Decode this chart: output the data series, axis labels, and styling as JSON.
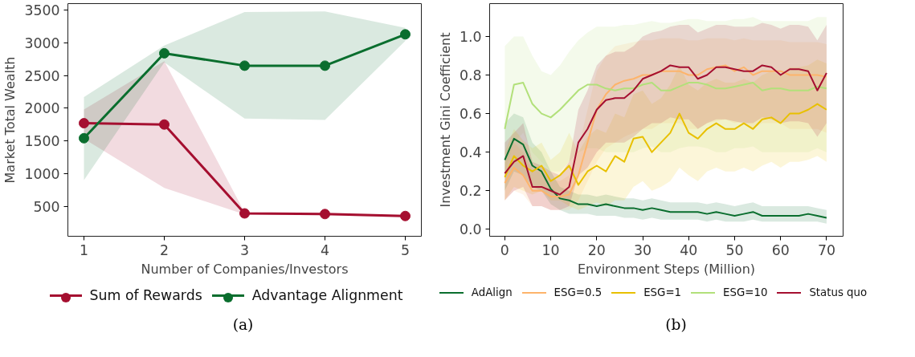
{
  "chart_data": [
    {
      "type": "line",
      "xlabel": "Number of Companies/Investors",
      "ylabel": "Market Total Wealth",
      "x": [
        1,
        2,
        3,
        4,
        5
      ],
      "xlim": [
        0.8,
        5.2
      ],
      "xticks": [
        1,
        2,
        3,
        4,
        5
      ],
      "ylim": [
        40,
        3600
      ],
      "yticks": [
        500,
        1000,
        1500,
        2000,
        2500,
        3000,
        3500
      ],
      "marker": "circle",
      "grid": false,
      "legend": "bottom",
      "annotations": [
        "(a)"
      ],
      "series": [
        {
          "name": "Sum of Rewards",
          "color": "#a50f30",
          "values": [
            1770,
            1750,
            390,
            380,
            350
          ],
          "lower": [
            1530,
            780,
            375,
            360,
            330
          ],
          "upper": [
            1980,
            2720,
            405,
            390,
            360
          ]
        },
        {
          "name": "Advantage Alignment",
          "color": "#0a6e2e",
          "values": [
            1540,
            2840,
            2650,
            2650,
            3130
          ],
          "lower": [
            900,
            2700,
            1840,
            1820,
            3030
          ],
          "upper": [
            2170,
            2960,
            3470,
            3480,
            3230
          ]
        }
      ]
    },
    {
      "type": "line",
      "xlabel": "Environment Steps (Million)",
      "ylabel": "Investment Gini Coefficient",
      "x": [
        0,
        2,
        4,
        6,
        8,
        10,
        12,
        14,
        16,
        18,
        20,
        22,
        24,
        26,
        28,
        30,
        32,
        34,
        36,
        38,
        40,
        42,
        44,
        46,
        48,
        50,
        52,
        54,
        56,
        58,
        60,
        62,
        64,
        66,
        68,
        70
      ],
      "xlim": [
        -3.3,
        73.6
      ],
      "xticks": [
        0,
        10,
        20,
        30,
        40,
        50,
        60,
        70
      ],
      "ylim": [
        -0.036,
        1.17
      ],
      "yticks": [
        {
          "value": 0,
          "label": "0.0"
        },
        {
          "value": 0.2,
          "label": "0.2"
        },
        {
          "value": 0.4,
          "label": "0.4"
        },
        {
          "value": 0.6,
          "label": "0.6"
        },
        {
          "value": 0.8,
          "label": "0.8"
        },
        {
          "value": 1,
          "label": "1.0"
        }
      ],
      "marker": "none",
      "grid": false,
      "legend": "bottom",
      "annotations": [
        "(b)"
      ],
      "series": [
        {
          "name": "AdAlign",
          "color": "#0a6e2e",
          "values": [
            0.36,
            0.47,
            0.44,
            0.33,
            0.3,
            0.21,
            0.16,
            0.15,
            0.13,
            0.13,
            0.12,
            0.13,
            0.12,
            0.11,
            0.11,
            0.1,
            0.11,
            0.1,
            0.09,
            0.09,
            0.09,
            0.09,
            0.08,
            0.09,
            0.08,
            0.07,
            0.08,
            0.09,
            0.07,
            0.07,
            0.07,
            0.07,
            0.07,
            0.08,
            0.07,
            0.06
          ],
          "lower": [
            0.2,
            0.3,
            0.28,
            0.22,
            0.2,
            0.13,
            0.1,
            0.08,
            0.08,
            0.08,
            0.07,
            0.07,
            0.07,
            0.06,
            0.06,
            0.05,
            0.06,
            0.05,
            0.05,
            0.05,
            0.05,
            0.05,
            0.04,
            0.05,
            0.04,
            0.04,
            0.04,
            0.05,
            0.04,
            0.04,
            0.04,
            0.04,
            0.04,
            0.04,
            0.04,
            0.03
          ],
          "upper": [
            0.55,
            0.6,
            0.58,
            0.45,
            0.4,
            0.3,
            0.22,
            0.2,
            0.18,
            0.18,
            0.17,
            0.18,
            0.17,
            0.16,
            0.16,
            0.15,
            0.16,
            0.15,
            0.14,
            0.14,
            0.14,
            0.14,
            0.13,
            0.14,
            0.13,
            0.12,
            0.13,
            0.14,
            0.12,
            0.12,
            0.12,
            0.12,
            0.12,
            0.12,
            0.11,
            0.1
          ]
        },
        {
          "name": "ESG=0.5",
          "color": "#fdb46b",
          "values": [
            0.24,
            0.32,
            0.28,
            0.2,
            0.2,
            0.17,
            0.17,
            0.18,
            0.28,
            0.45,
            0.62,
            0.7,
            0.75,
            0.77,
            0.78,
            0.8,
            0.8,
            0.82,
            0.82,
            0.82,
            0.8,
            0.8,
            0.83,
            0.84,
            0.85,
            0.82,
            0.84,
            0.8,
            0.82,
            0.82,
            0.82,
            0.8,
            0.8,
            0.8,
            0.8,
            0.79
          ],
          "lower": [
            0.15,
            0.2,
            0.18,
            0.12,
            0.12,
            0.1,
            0.1,
            0.1,
            0.15,
            0.25,
            0.35,
            0.42,
            0.45,
            0.48,
            0.5,
            0.52,
            0.52,
            0.55,
            0.55,
            0.55,
            0.52,
            0.52,
            0.55,
            0.56,
            0.57,
            0.55,
            0.56,
            0.52,
            0.55,
            0.55,
            0.55,
            0.52,
            0.52,
            0.52,
            0.52,
            0.5
          ],
          "upper": [
            0.35,
            0.45,
            0.4,
            0.3,
            0.3,
            0.26,
            0.25,
            0.28,
            0.42,
            0.62,
            0.82,
            0.9,
            0.95,
            0.96,
            0.97,
            0.98,
            0.98,
            0.99,
            0.99,
            0.99,
            0.98,
            0.98,
            0.99,
            0.99,
            0.99,
            0.98,
            0.99,
            0.98,
            0.98,
            0.98,
            0.98,
            0.97,
            0.97,
            0.97,
            0.97,
            0.96
          ]
        },
        {
          "name": "ESG=1",
          "color": "#e8c000",
          "values": [
            0.27,
            0.38,
            0.33,
            0.3,
            0.33,
            0.25,
            0.28,
            0.33,
            0.23,
            0.3,
            0.33,
            0.3,
            0.38,
            0.35,
            0.47,
            0.48,
            0.4,
            0.45,
            0.5,
            0.6,
            0.5,
            0.47,
            0.52,
            0.55,
            0.52,
            0.52,
            0.55,
            0.52,
            0.57,
            0.58,
            0.55,
            0.6,
            0.6,
            0.62,
            0.65,
            0.62
          ],
          "lower": [
            0.15,
            0.22,
            0.2,
            0.18,
            0.2,
            0.15,
            0.15,
            0.12,
            0.1,
            0.12,
            0.14,
            0.12,
            0.15,
            0.15,
            0.22,
            0.25,
            0.2,
            0.22,
            0.25,
            0.32,
            0.28,
            0.25,
            0.3,
            0.32,
            0.3,
            0.3,
            0.32,
            0.3,
            0.33,
            0.35,
            0.32,
            0.35,
            0.35,
            0.36,
            0.38,
            0.35
          ],
          "upper": [
            0.4,
            0.52,
            0.46,
            0.42,
            0.45,
            0.36,
            0.4,
            0.5,
            0.4,
            0.48,
            0.52,
            0.5,
            0.6,
            0.58,
            0.7,
            0.72,
            0.65,
            0.68,
            0.75,
            0.85,
            0.75,
            0.72,
            0.76,
            0.78,
            0.76,
            0.76,
            0.78,
            0.76,
            0.8,
            0.82,
            0.8,
            0.84,
            0.84,
            0.85,
            0.88,
            0.86
          ]
        },
        {
          "name": "ESG=10",
          "color": "#b2e07a",
          "values": [
            0.52,
            0.75,
            0.76,
            0.65,
            0.6,
            0.58,
            0.62,
            0.67,
            0.72,
            0.75,
            0.75,
            0.73,
            0.72,
            0.73,
            0.73,
            0.75,
            0.76,
            0.72,
            0.72,
            0.74,
            0.76,
            0.76,
            0.75,
            0.73,
            0.73,
            0.74,
            0.75,
            0.76,
            0.72,
            0.73,
            0.73,
            0.72,
            0.72,
            0.72,
            0.74,
            0.73
          ],
          "lower": [
            0.3,
            0.45,
            0.5,
            0.4,
            0.35,
            0.3,
            0.3,
            0.35,
            0.4,
            0.42,
            0.42,
            0.4,
            0.4,
            0.4,
            0.4,
            0.42,
            0.43,
            0.4,
            0.4,
            0.42,
            0.43,
            0.43,
            0.42,
            0.4,
            0.4,
            0.42,
            0.42,
            0.43,
            0.4,
            0.4,
            0.4,
            0.4,
            0.4,
            0.4,
            0.42,
            0.4
          ],
          "upper": [
            0.95,
            1.0,
            1.0,
            0.9,
            0.82,
            0.8,
            0.85,
            0.92,
            0.98,
            1.02,
            1.05,
            1.05,
            1.05,
            1.06,
            1.06,
            1.07,
            1.08,
            1.07,
            1.07,
            1.08,
            1.09,
            1.09,
            1.08,
            1.08,
            1.08,
            1.09,
            1.09,
            1.1,
            1.08,
            1.08,
            1.08,
            1.08,
            1.08,
            1.08,
            1.1,
            1.1
          ]
        },
        {
          "name": "Status quo",
          "color": "#a50f30",
          "values": [
            0.29,
            0.35,
            0.38,
            0.22,
            0.22,
            0.2,
            0.18,
            0.22,
            0.45,
            0.52,
            0.62,
            0.67,
            0.68,
            0.68,
            0.72,
            0.78,
            0.8,
            0.82,
            0.85,
            0.84,
            0.84,
            0.78,
            0.8,
            0.84,
            0.84,
            0.83,
            0.82,
            0.82,
            0.85,
            0.84,
            0.8,
            0.83,
            0.83,
            0.82,
            0.72,
            0.81
          ],
          "lower": [
            0.15,
            0.2,
            0.22,
            0.12,
            0.12,
            0.1,
            0.1,
            0.12,
            0.28,
            0.32,
            0.4,
            0.45,
            0.45,
            0.45,
            0.48,
            0.52,
            0.55,
            0.55,
            0.58,
            0.57,
            0.57,
            0.52,
            0.55,
            0.57,
            0.57,
            0.56,
            0.55,
            0.55,
            0.58,
            0.57,
            0.55,
            0.56,
            0.56,
            0.55,
            0.48,
            0.55
          ],
          "upper": [
            0.45,
            0.5,
            0.55,
            0.35,
            0.33,
            0.3,
            0.28,
            0.35,
            0.62,
            0.72,
            0.85,
            0.9,
            0.92,
            0.92,
            0.95,
            1.0,
            1.02,
            1.03,
            1.05,
            1.06,
            1.06,
            1.02,
            1.04,
            1.06,
            1.06,
            1.05,
            1.05,
            1.05,
            1.07,
            1.06,
            1.04,
            1.06,
            1.06,
            1.05,
            0.98,
            1.06
          ]
        }
      ]
    }
  ]
}
